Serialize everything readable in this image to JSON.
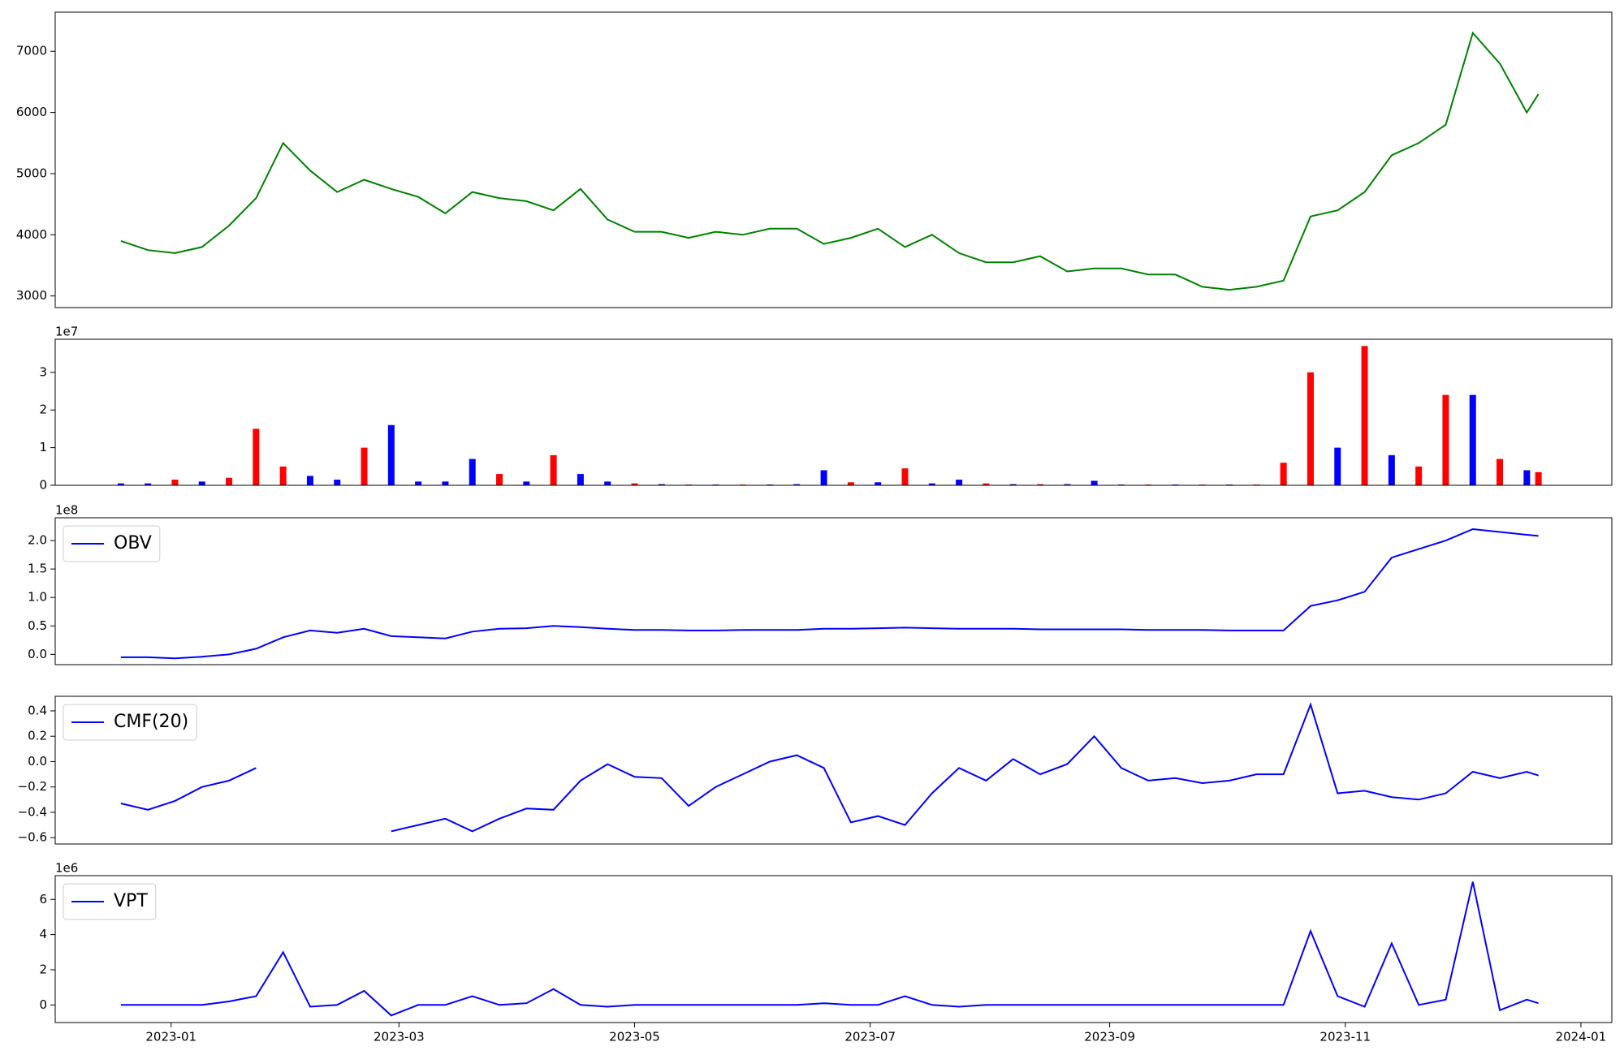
{
  "chart_data": [
    {
      "type": "line",
      "color": "#008000",
      "x": [
        "2022-12-19",
        "2022-12-26",
        "2023-01-02",
        "2023-01-09",
        "2023-01-16",
        "2023-01-23",
        "2023-01-30",
        "2023-02-06",
        "2023-02-13",
        "2023-02-20",
        "2023-02-27",
        "2023-03-06",
        "2023-03-13",
        "2023-03-20",
        "2023-03-27",
        "2023-04-03",
        "2023-04-10",
        "2023-04-17",
        "2023-04-24",
        "2023-05-01",
        "2023-05-08",
        "2023-05-15",
        "2023-05-22",
        "2023-05-29",
        "2023-06-05",
        "2023-06-12",
        "2023-06-19",
        "2023-06-26",
        "2023-07-03",
        "2023-07-10",
        "2023-07-17",
        "2023-07-24",
        "2023-07-31",
        "2023-08-07",
        "2023-08-14",
        "2023-08-21",
        "2023-08-28",
        "2023-09-04",
        "2023-09-11",
        "2023-09-18",
        "2023-09-25",
        "2023-10-02",
        "2023-10-09",
        "2023-10-16",
        "2023-10-23",
        "2023-10-30",
        "2023-11-06",
        "2023-11-13",
        "2023-11-20",
        "2023-11-27",
        "2023-12-04",
        "2023-12-11",
        "2023-12-18",
        "2023-12-21"
      ],
      "values": [
        3900,
        3750,
        3700,
        3800,
        4150,
        4600,
        5500,
        5050,
        4700,
        4900,
        4750,
        4620,
        4350,
        4700,
        4600,
        4550,
        4400,
        4750,
        4250,
        4050,
        4050,
        3950,
        4050,
        4000,
        4100,
        4100,
        3850,
        3950,
        4100,
        3800,
        4000,
        3700,
        3550,
        3550,
        3650,
        3400,
        3450,
        3450,
        3350,
        3350,
        3150,
        3100,
        3150,
        3250,
        4300,
        4400,
        4700,
        5300,
        5500,
        5800,
        7300,
        6800,
        6000,
        6300
      ],
      "xlim": [
        "2022-12-02",
        "2024-01-09"
      ],
      "ylim": [
        2810,
        7640
      ],
      "yticks": [
        3000,
        4000,
        5000,
        6000,
        7000
      ]
    },
    {
      "type": "bar",
      "x": [
        "2022-12-19",
        "2022-12-26",
        "2023-01-02",
        "2023-01-09",
        "2023-01-16",
        "2023-01-23",
        "2023-01-30",
        "2023-02-06",
        "2023-02-13",
        "2023-02-20",
        "2023-02-27",
        "2023-03-06",
        "2023-03-13",
        "2023-03-20",
        "2023-03-27",
        "2023-04-03",
        "2023-04-10",
        "2023-04-17",
        "2023-04-24",
        "2023-05-01",
        "2023-05-08",
        "2023-05-15",
        "2023-05-22",
        "2023-05-29",
        "2023-06-05",
        "2023-06-12",
        "2023-06-19",
        "2023-06-26",
        "2023-07-03",
        "2023-07-10",
        "2023-07-17",
        "2023-07-24",
        "2023-07-31",
        "2023-08-07",
        "2023-08-14",
        "2023-08-21",
        "2023-08-28",
        "2023-09-04",
        "2023-09-11",
        "2023-09-18",
        "2023-09-25",
        "2023-10-02",
        "2023-10-09",
        "2023-10-16",
        "2023-10-23",
        "2023-10-30",
        "2023-11-06",
        "2023-11-13",
        "2023-11-20",
        "2023-11-27",
        "2023-12-04",
        "2023-12-11",
        "2023-12-18",
        "2023-12-21"
      ],
      "values": [
        500000,
        500000,
        1500000,
        1000000,
        2000000,
        15000000,
        5000000,
        2500000,
        1500000,
        10000000,
        16000000,
        1000000,
        1000000,
        7000000,
        3000000,
        1000000,
        8000000,
        3000000,
        1000000,
        500000,
        300000,
        200000,
        200000,
        200000,
        200000,
        300000,
        4000000,
        800000,
        800000,
        4500000,
        500000,
        1500000,
        500000,
        300000,
        300000,
        300000,
        1200000,
        200000,
        200000,
        200000,
        200000,
        200000,
        200000,
        6000000,
        30000000,
        10000000,
        37000000,
        8000000,
        5000000,
        24000000,
        24000000,
        7000000,
        4000000,
        3500000
      ],
      "colors": [
        "blue",
        "blue",
        "red",
        "blue",
        "red",
        "red",
        "red",
        "blue",
        "blue",
        "red",
        "blue",
        "blue",
        "blue",
        "blue",
        "red",
        "blue",
        "red",
        "blue",
        "blue",
        "red",
        "blue",
        "red",
        "blue",
        "red",
        "blue",
        "blue",
        "blue",
        "red",
        "blue",
        "red",
        "blue",
        "blue",
        "red",
        "blue",
        "red",
        "blue",
        "blue",
        "blue",
        "red",
        "blue",
        "red",
        "blue",
        "red",
        "red",
        "red",
        "blue",
        "red",
        "blue",
        "red",
        "red",
        "blue",
        "red",
        "blue",
        "red"
      ],
      "xlim": [
        "2022-12-02",
        "2024-01-09"
      ],
      "ylim": [
        0,
        38800000
      ],
      "y_offset_label": "1e7",
      "yticks": [
        {
          "value": 0,
          "label": "0"
        },
        {
          "value": 10000000,
          "label": "1"
        },
        {
          "value": 20000000,
          "label": "2"
        },
        {
          "value": 30000000,
          "label": "3"
        }
      ]
    },
    {
      "type": "line",
      "legend": "upper left",
      "x": [
        "2022-12-19",
        "2022-12-26",
        "2023-01-02",
        "2023-01-09",
        "2023-01-16",
        "2023-01-23",
        "2023-01-30",
        "2023-02-06",
        "2023-02-13",
        "2023-02-20",
        "2023-02-27",
        "2023-03-06",
        "2023-03-13",
        "2023-03-20",
        "2023-03-27",
        "2023-04-03",
        "2023-04-10",
        "2023-04-17",
        "2023-04-24",
        "2023-05-01",
        "2023-05-08",
        "2023-05-15",
        "2023-05-22",
        "2023-05-29",
        "2023-06-05",
        "2023-06-12",
        "2023-06-19",
        "2023-06-26",
        "2023-07-03",
        "2023-07-10",
        "2023-07-17",
        "2023-07-24",
        "2023-07-31",
        "2023-08-07",
        "2023-08-14",
        "2023-08-21",
        "2023-08-28",
        "2023-09-04",
        "2023-09-11",
        "2023-09-18",
        "2023-09-25",
        "2023-10-02",
        "2023-10-09",
        "2023-10-16",
        "2023-10-23",
        "2023-10-30",
        "2023-11-06",
        "2023-11-13",
        "2023-11-20",
        "2023-11-27",
        "2023-12-04",
        "2023-12-11",
        "2023-12-18",
        "2023-12-21"
      ],
      "series": [
        {
          "name": "OBV",
          "color": "#0000ff",
          "values": [
            -5000000,
            -5000000,
            -7000000,
            -4000000,
            0,
            10000000,
            30000000,
            42000000,
            38000000,
            45000000,
            32000000,
            30000000,
            28000000,
            40000000,
            45000000,
            46000000,
            50000000,
            48000000,
            45000000,
            43000000,
            43000000,
            42000000,
            42000000,
            43000000,
            43000000,
            43000000,
            45000000,
            45000000,
            46000000,
            47000000,
            46000000,
            45000000,
            45000000,
            45000000,
            44000000,
            44000000,
            44000000,
            44000000,
            43000000,
            43000000,
            43000000,
            42000000,
            42000000,
            42000000,
            85000000,
            95000000,
            110000000,
            170000000,
            185000000,
            200000000,
            220000000,
            215000000,
            210000000,
            208000000
          ]
        }
      ],
      "xlim": [
        "2022-12-02",
        "2024-01-09"
      ],
      "ylim": [
        -18000000,
        240000000
      ],
      "y_offset_label": "1e8",
      "yticks": [
        {
          "value": 0,
          "label": "0.0"
        },
        {
          "value": 50000000,
          "label": "0.5"
        },
        {
          "value": 100000000,
          "label": "1.0"
        },
        {
          "value": 150000000,
          "label": "1.5"
        },
        {
          "value": 200000000,
          "label": "2.0"
        }
      ]
    },
    {
      "type": "line",
      "legend": "upper left",
      "x": [
        "2022-12-19",
        "2022-12-26",
        "2023-01-02",
        "2023-01-09",
        "2023-01-16",
        "2023-01-23",
        "2023-01-30",
        "2023-02-06",
        "2023-02-13",
        "2023-02-20",
        "2023-02-27",
        "2023-03-06",
        "2023-03-13",
        "2023-03-20",
        "2023-03-27",
        "2023-04-03",
        "2023-04-10",
        "2023-04-17",
        "2023-04-24",
        "2023-05-01",
        "2023-05-08",
        "2023-05-15",
        "2023-05-22",
        "2023-05-29",
        "2023-06-05",
        "2023-06-12",
        "2023-06-19",
        "2023-06-26",
        "2023-07-03",
        "2023-07-10",
        "2023-07-17",
        "2023-07-24",
        "2023-07-31",
        "2023-08-07",
        "2023-08-14",
        "2023-08-21",
        "2023-08-28",
        "2023-09-04",
        "2023-09-11",
        "2023-09-18",
        "2023-09-25",
        "2023-10-02",
        "2023-10-09",
        "2023-10-16",
        "2023-10-23",
        "2023-10-30",
        "2023-11-06",
        "2023-11-13",
        "2023-11-20",
        "2023-11-27",
        "2023-12-04",
        "2023-12-11",
        "2023-12-18",
        "2023-12-21"
      ],
      "series": [
        {
          "name": "CMF(20)",
          "color": "#0000ff",
          "values": [
            -0.33,
            -0.38,
            -0.31,
            -0.2,
            -0.15,
            -0.05,
            null,
            null,
            null,
            null,
            -0.55,
            -0.5,
            -0.45,
            -0.55,
            -0.45,
            -0.37,
            -0.38,
            -0.15,
            -0.02,
            -0.12,
            -0.13,
            -0.35,
            -0.2,
            -0.1,
            0.0,
            0.05,
            -0.05,
            -0.48,
            -0.43,
            -0.5,
            -0.25,
            -0.05,
            -0.15,
            0.02,
            -0.1,
            -0.02,
            0.2,
            -0.05,
            -0.15,
            -0.13,
            -0.17,
            -0.15,
            -0.1,
            -0.1,
            0.45,
            -0.25,
            -0.23,
            -0.28,
            -0.3,
            -0.25,
            -0.08,
            -0.13,
            -0.08,
            -0.11
          ]
        }
      ],
      "xlim": [
        "2022-12-02",
        "2024-01-09"
      ],
      "ylim": [
        -0.65,
        0.515
      ],
      "yticks": [
        {
          "value": -0.6,
          "label": "−0.6"
        },
        {
          "value": -0.4,
          "label": "−0.4"
        },
        {
          "value": -0.2,
          "label": "−0.2"
        },
        {
          "value": 0,
          "label": "0.0"
        },
        {
          "value": 0.2,
          "label": "0.2"
        },
        {
          "value": 0.4,
          "label": "0.4"
        }
      ]
    },
    {
      "type": "line",
      "legend": "upper left",
      "x": [
        "2022-12-19",
        "2022-12-26",
        "2023-01-02",
        "2023-01-09",
        "2023-01-16",
        "2023-01-23",
        "2023-01-30",
        "2023-02-06",
        "2023-02-13",
        "2023-02-20",
        "2023-02-27",
        "2023-03-06",
        "2023-03-13",
        "2023-03-20",
        "2023-03-27",
        "2023-04-03",
        "2023-04-10",
        "2023-04-17",
        "2023-04-24",
        "2023-05-01",
        "2023-05-08",
        "2023-05-15",
        "2023-05-22",
        "2023-05-29",
        "2023-06-05",
        "2023-06-12",
        "2023-06-19",
        "2023-06-26",
        "2023-07-03",
        "2023-07-10",
        "2023-07-17",
        "2023-07-24",
        "2023-07-31",
        "2023-08-07",
        "2023-08-14",
        "2023-08-21",
        "2023-08-28",
        "2023-09-04",
        "2023-09-11",
        "2023-09-18",
        "2023-09-25",
        "2023-10-02",
        "2023-10-09",
        "2023-10-16",
        "2023-10-23",
        "2023-10-30",
        "2023-11-06",
        "2023-11-13",
        "2023-11-20",
        "2023-11-27",
        "2023-12-04",
        "2023-12-11",
        "2023-12-18",
        "2023-12-21"
      ],
      "series": [
        {
          "name": "VPT",
          "color": "#0000ff",
          "values": [
            0,
            0,
            0,
            0,
            200000,
            500000,
            3000000,
            -100000,
            0,
            800000,
            -600000,
            0,
            0,
            500000,
            0,
            100000,
            900000,
            0,
            -100000,
            0,
            0,
            0,
            0,
            0,
            0,
            0,
            100000,
            0,
            0,
            500000,
            0,
            -100000,
            0,
            0,
            0,
            0,
            0,
            0,
            0,
            0,
            0,
            0,
            0,
            0,
            4200000,
            500000,
            -100000,
            3500000,
            0,
            300000,
            7000000,
            -300000,
            300000,
            100000
          ]
        }
      ],
      "xlim": [
        "2022-12-02",
        "2024-01-09"
      ],
      "ylim": [
        -1000000,
        7350000
      ],
      "y_offset_label": "1e6",
      "yticks": [
        {
          "value": 0,
          "label": "0"
        },
        {
          "value": 2000000,
          "label": "2"
        },
        {
          "value": 4000000,
          "label": "4"
        },
        {
          "value": 6000000,
          "label": "6"
        }
      ],
      "xticks": [
        {
          "value": "2023-01-01",
          "label": "2023-01"
        },
        {
          "value": "2023-03-01",
          "label": "2023-03"
        },
        {
          "value": "2023-05-01",
          "label": "2023-05"
        },
        {
          "value": "2023-07-01",
          "label": "2023-07"
        },
        {
          "value": "2023-09-01",
          "label": "2023-09"
        },
        {
          "value": "2023-11-01",
          "label": "2023-11"
        },
        {
          "value": "2024-01-01",
          "label": "2024-01"
        }
      ]
    }
  ]
}
